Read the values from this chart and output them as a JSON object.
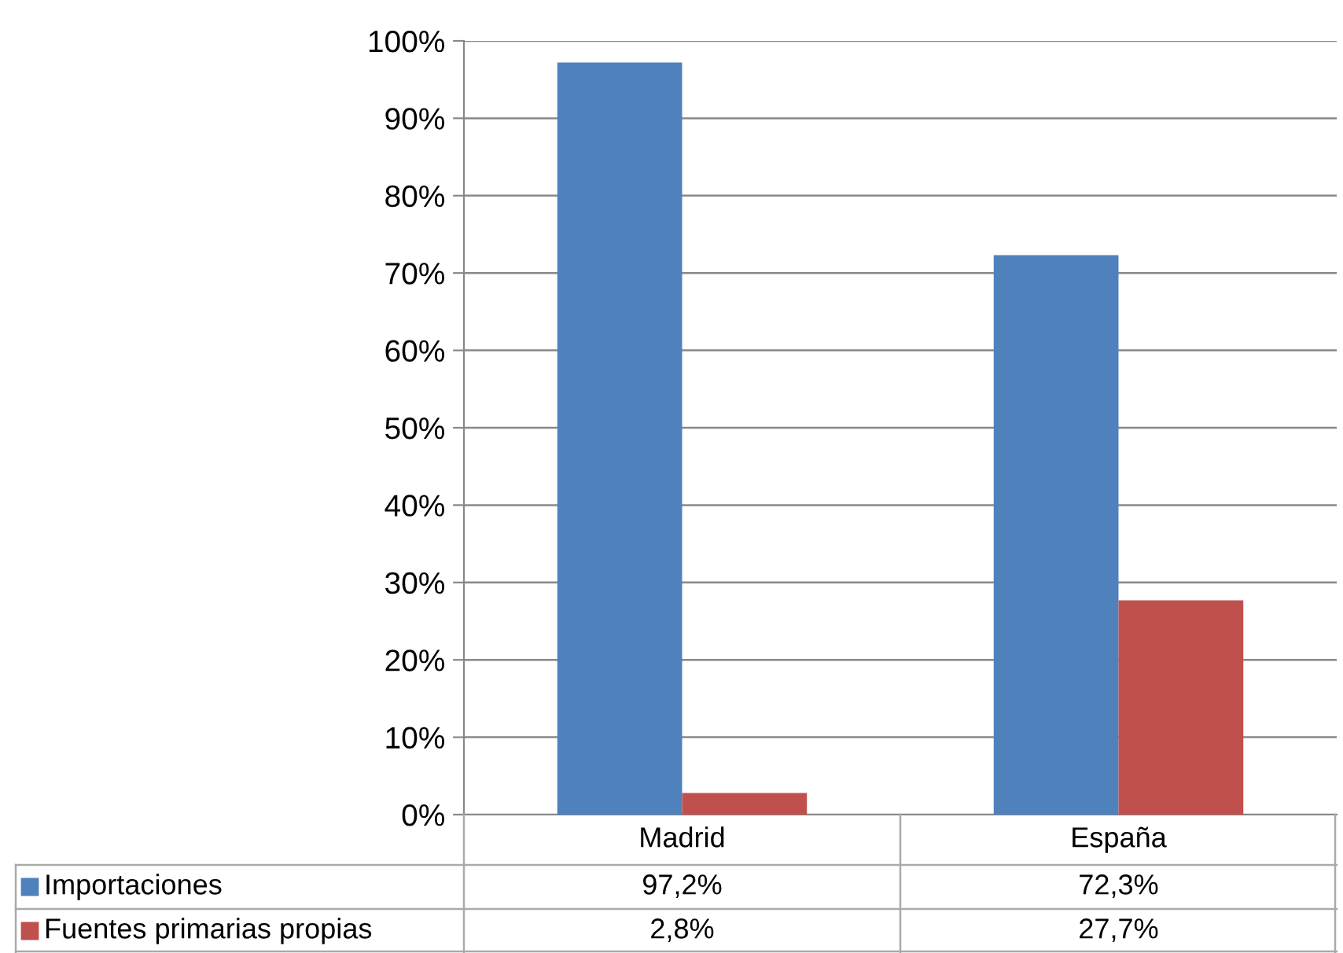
{
  "chart_data": {
    "type": "bar",
    "categories": [
      "Madrid",
      "España"
    ],
    "series": [
      {
        "name": "Importaciones",
        "color": "#4f81bd",
        "values": [
          97.2,
          72.3
        ],
        "value_labels": [
          "97,2%",
          "72,3%"
        ]
      },
      {
        "name": "Fuentes primarias propias",
        "color": "#c0504d",
        "values": [
          2.8,
          27.7
        ],
        "value_labels": [
          "2,8%",
          "27,7%"
        ]
      }
    ],
    "ylim": [
      0,
      100
    ],
    "yticks": [
      {
        "value": 0,
        "label": "0%"
      },
      {
        "value": 10,
        "label": "10%"
      },
      {
        "value": 20,
        "label": "20%"
      },
      {
        "value": 30,
        "label": "30%"
      },
      {
        "value": 40,
        "label": "40%"
      },
      {
        "value": 50,
        "label": "50%"
      },
      {
        "value": 60,
        "label": "60%"
      },
      {
        "value": 70,
        "label": "70%"
      },
      {
        "value": 80,
        "label": "80%"
      },
      {
        "value": 90,
        "label": "90%"
      },
      {
        "value": 100,
        "label": "100%"
      }
    ],
    "grid": "y",
    "legend": "bottom"
  }
}
